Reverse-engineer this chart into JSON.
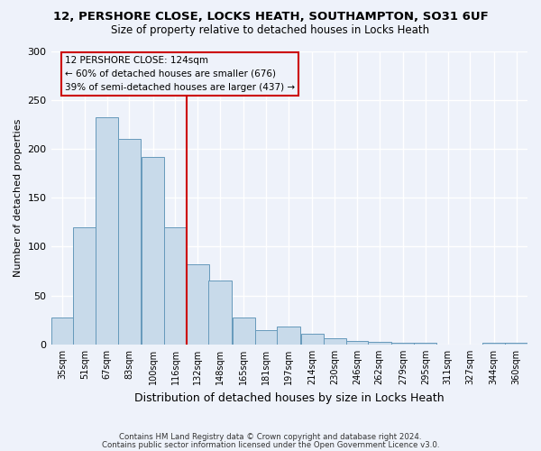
{
  "title": "12, PERSHORE CLOSE, LOCKS HEATH, SOUTHAMPTON, SO31 6UF",
  "subtitle": "Size of property relative to detached houses in Locks Heath",
  "xlabel": "Distribution of detached houses by size in Locks Heath",
  "ylabel": "Number of detached properties",
  "bin_labels": [
    "35sqm",
    "51sqm",
    "67sqm",
    "83sqm",
    "100sqm",
    "116sqm",
    "132sqm",
    "148sqm",
    "165sqm",
    "181sqm",
    "197sqm",
    "214sqm",
    "230sqm",
    "246sqm",
    "262sqm",
    "279sqm",
    "295sqm",
    "311sqm",
    "327sqm",
    "344sqm",
    "360sqm"
  ],
  "bin_centers": [
    35,
    51,
    67,
    83,
    100,
    116,
    132,
    148,
    165,
    181,
    197,
    214,
    230,
    246,
    262,
    279,
    295,
    311,
    327,
    344,
    360
  ],
  "bar_heights": [
    28,
    120,
    232,
    210,
    192,
    120,
    82,
    65,
    28,
    15,
    18,
    11,
    6,
    4,
    3,
    2,
    2,
    0,
    0,
    2,
    2
  ],
  "bar_color": "#c8daea",
  "bar_edge_color": "#6699bb",
  "marker_value": 124,
  "marker_color": "#cc0000",
  "ylim": [
    0,
    300
  ],
  "yticks": [
    0,
    50,
    100,
    150,
    200,
    250,
    300
  ],
  "annotation_line1": "12 PERSHORE CLOSE: 124sqm",
  "annotation_line2": "← 60% of detached houses are smaller (676)",
  "annotation_line3": "39% of semi-detached houses are larger (437) →",
  "annotation_box_color": "#cc0000",
  "background_color": "#eef2fa",
  "footer_line1": "Contains HM Land Registry data © Crown copyright and database right 2024.",
  "footer_line2": "Contains public sector information licensed under the Open Government Licence v3.0."
}
